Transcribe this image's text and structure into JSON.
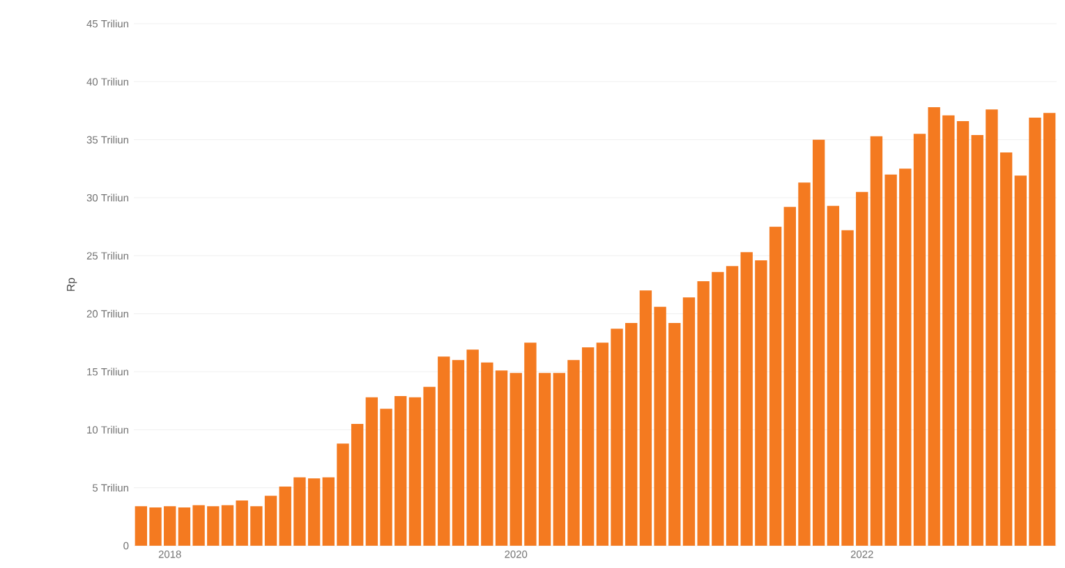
{
  "chart_data": {
    "type": "bar",
    "ylabel": "Rp",
    "color": "#f47a20",
    "categories": [
      null,
      null,
      "2018",
      null,
      null,
      null,
      null,
      null,
      null,
      null,
      null,
      null,
      null,
      null,
      null,
      null,
      null,
      null,
      null,
      null,
      null,
      null,
      null,
      null,
      null,
      null,
      "2020",
      null,
      null,
      null,
      null,
      null,
      null,
      null,
      null,
      null,
      null,
      null,
      null,
      null,
      null,
      null,
      null,
      null,
      null,
      null,
      null,
      null,
      null,
      null,
      "2022",
      null,
      null,
      null,
      null,
      null,
      null,
      null,
      null,
      null,
      null,
      null,
      null,
      null
    ],
    "values": [
      3.4,
      3.3,
      3.4,
      3.3,
      3.5,
      3.4,
      3.5,
      3.9,
      3.4,
      4.3,
      5.1,
      5.9,
      5.8,
      5.9,
      8.8,
      10.5,
      12.8,
      11.8,
      12.9,
      12.8,
      13.7,
      16.3,
      16.0,
      16.9,
      15.8,
      15.1,
      14.9,
      17.5,
      14.9,
      14.9,
      16.0,
      17.1,
      17.5,
      18.7,
      19.2,
      22.0,
      20.6,
      19.2,
      21.4,
      22.8,
      23.6,
      24.1,
      25.3,
      24.6,
      27.5,
      29.2,
      31.3,
      35.0,
      29.3,
      27.2,
      30.5,
      35.3,
      32.0,
      32.5,
      35.5,
      37.8,
      37.1,
      36.6,
      35.4,
      37.6,
      33.9,
      31.9,
      36.9,
      37.3
    ],
    "ylim": [
      0,
      45
    ],
    "yticks": [
      0,
      {
        "value": 5,
        "label": "5 Triliun"
      },
      {
        "value": 10,
        "label": "10 Triliun"
      },
      {
        "value": 15,
        "label": "15 Triliun"
      },
      {
        "value": 20,
        "label": "20 Triliun"
      },
      {
        "value": 25,
        "label": "25 Triliun"
      },
      {
        "value": 30,
        "label": "30 Triliun"
      },
      {
        "value": 35,
        "label": "35 Triliun"
      },
      {
        "value": 40,
        "label": "40 Triliun"
      },
      {
        "value": 45,
        "label": "45 Triliun"
      }
    ],
    "grid": "y"
  }
}
